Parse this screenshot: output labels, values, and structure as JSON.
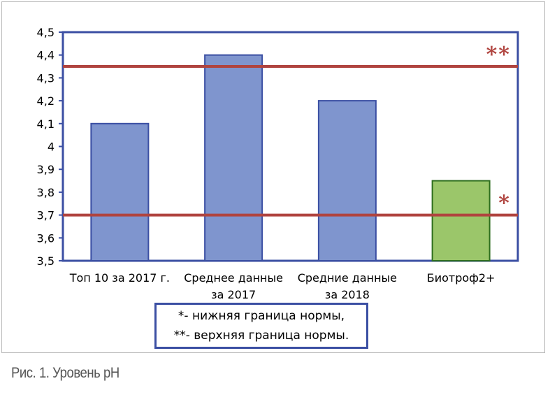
{
  "chart_data": {
    "type": "bar",
    "categories": [
      "Топ 10 за 2017 г.",
      "Среднее данные за 2017",
      "Средние данные за 2018",
      "Биотроф2+"
    ],
    "category_lines": [
      [
        "Топ 10 за 2017 г."
      ],
      [
        "Среднее данные",
        "за 2017"
      ],
      [
        "Средние данные",
        "за 2018"
      ],
      [
        "Биотроф2+"
      ]
    ],
    "values": [
      4.1,
      4.4,
      4.2,
      3.85
    ],
    "bar_colors": [
      "#7f95ce",
      "#7f95ce",
      "#7f95ce",
      "#9bc66a"
    ],
    "bar_border_color": "#3b4fa3",
    "highlight_border_color": "#2e6e1e",
    "ylim": [
      3.5,
      4.5
    ],
    "yticks": [
      "3,5",
      "3,6",
      "3,7",
      "3,8",
      "3,9",
      "4",
      "4,1",
      "4,2",
      "4,3",
      "4,4",
      "4,5"
    ],
    "ytick_values": [
      3.5,
      3.6,
      3.7,
      3.8,
      3.9,
      4.0,
      4.1,
      4.2,
      4.3,
      4.4,
      4.5
    ],
    "reference_lines": [
      {
        "value": 4.35,
        "marker": "**",
        "color": "#b0443f"
      },
      {
        "value": 3.7,
        "marker": "*",
        "color": "#b0443f"
      }
    ],
    "grid": false,
    "xlabel": "",
    "ylabel": ""
  },
  "legend": {
    "line1": "*- нижняя граница нормы,",
    "line2": "**- верхняя граница нормы."
  },
  "caption": "Рис. 1. Уровень рН"
}
